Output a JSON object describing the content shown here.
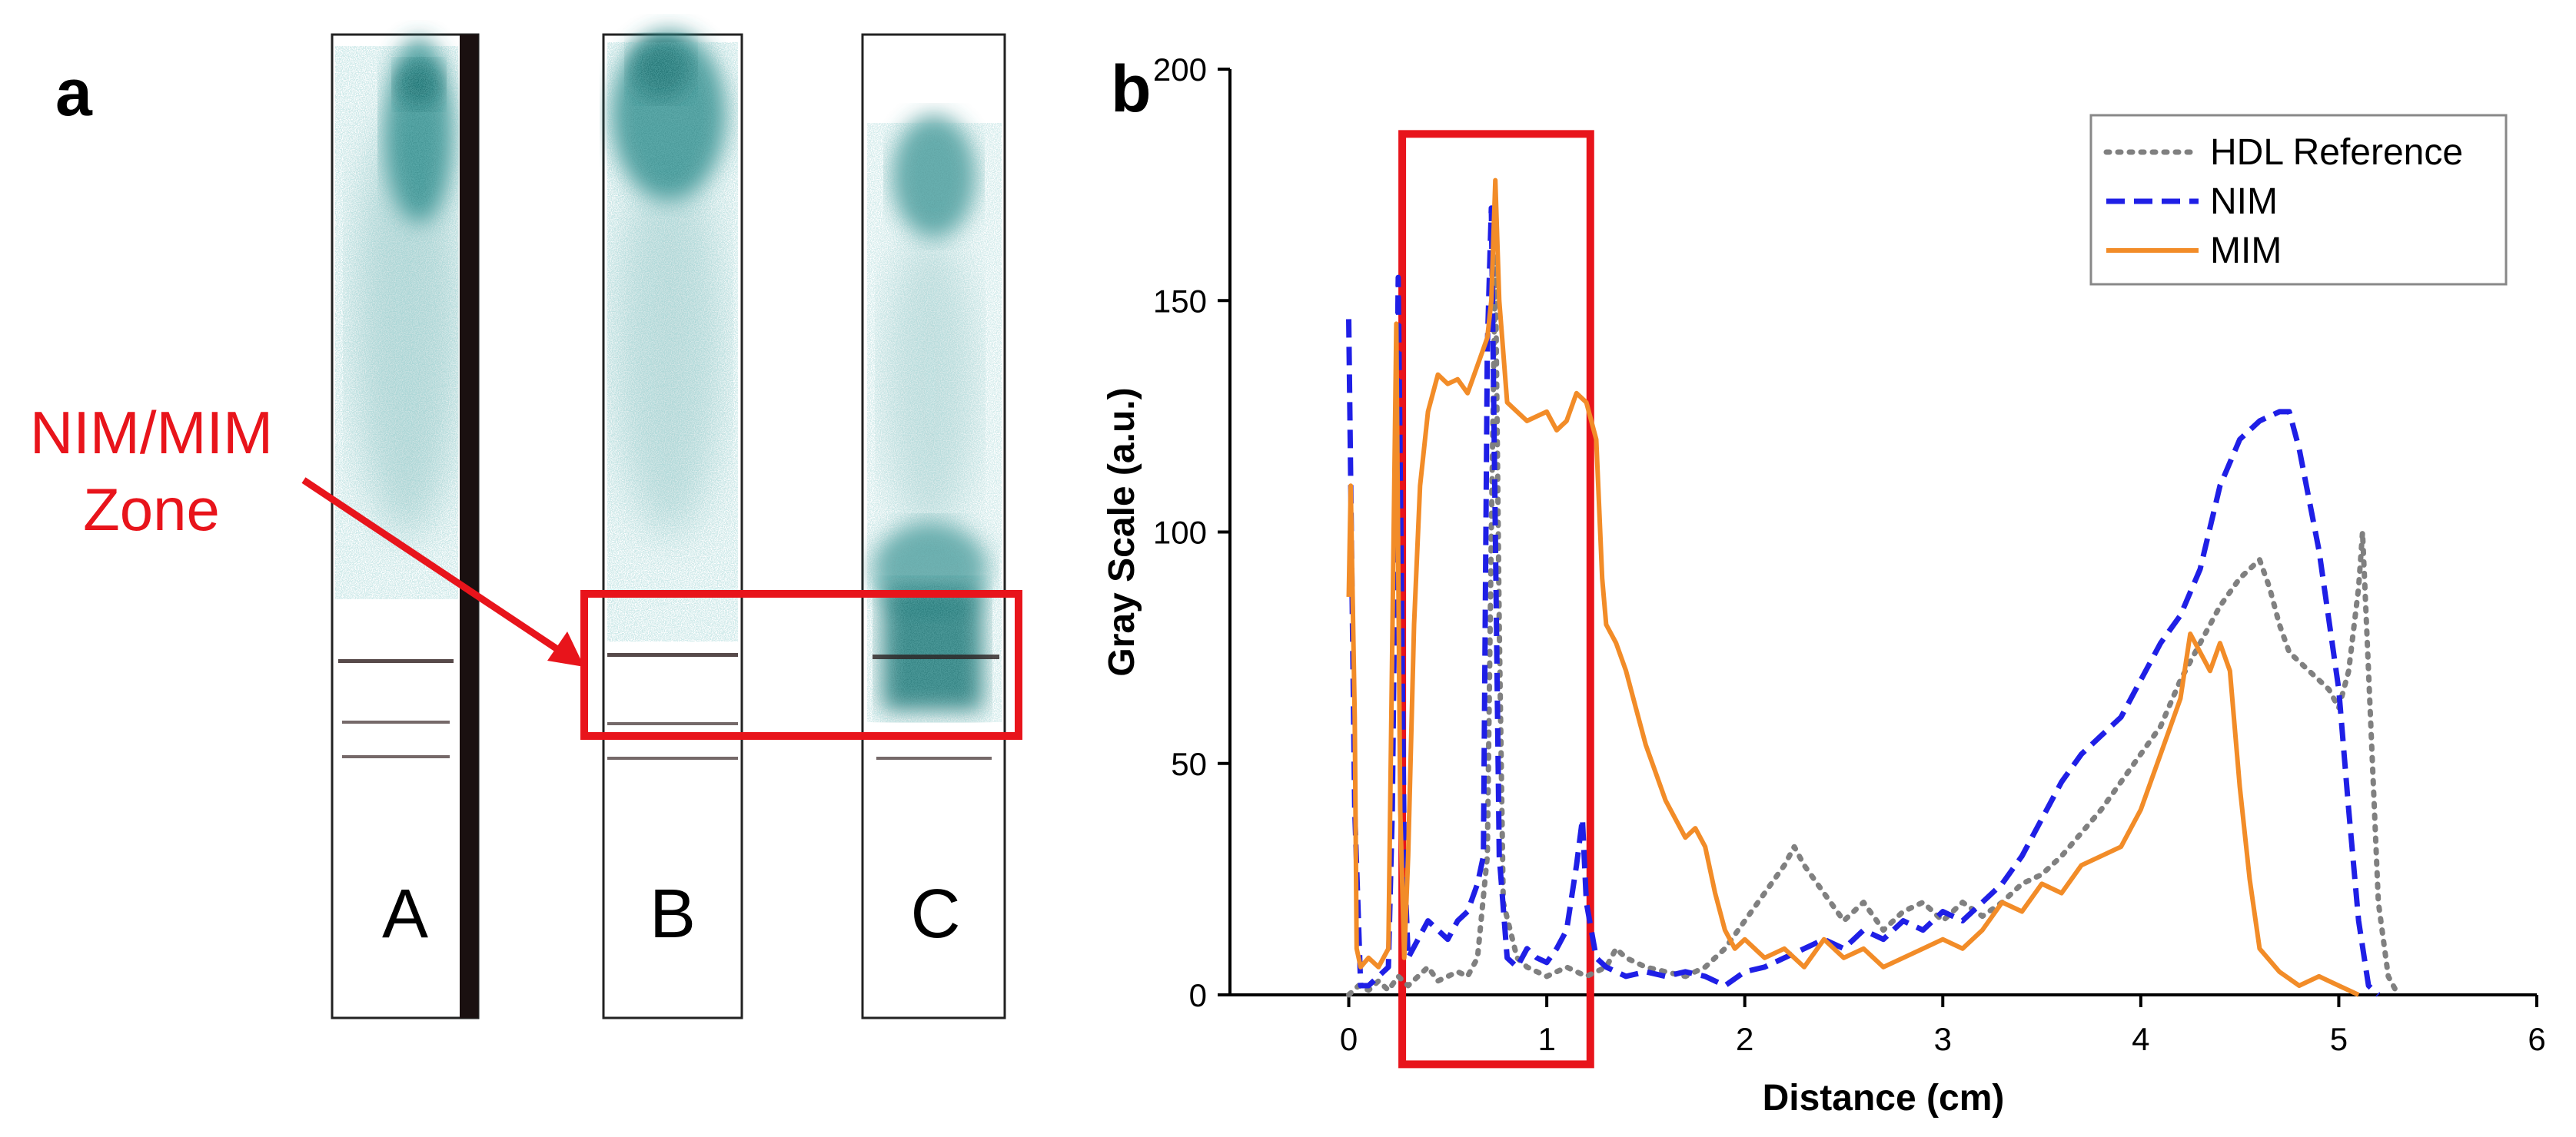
{
  "panel_a": {
    "label": "a",
    "zone_label_line1": "NIM/MIM",
    "zone_label_line2": "Zone",
    "strip_labels": [
      "A",
      "B",
      "C"
    ],
    "colors": {
      "stain": "#2f8a8a",
      "highlight": "#e8141b",
      "band": "#3a2a2a"
    }
  },
  "chart_data": {
    "type": "line",
    "panel_label": "b",
    "title": "",
    "xlabel": "Distance (cm)",
    "ylabel": "Gray Scale (a.u.)",
    "xlim": [
      -0.6,
      6
    ],
    "ylim": [
      0,
      200
    ],
    "xticks": [
      0,
      1,
      2,
      3,
      4,
      5,
      6
    ],
    "yticks": [
      0,
      50,
      100,
      150,
      200
    ],
    "legend_position": "top-right",
    "highlight_region": {
      "x": [
        0.27,
        1.22
      ],
      "y": [
        -15,
        186
      ],
      "color": "#e8141b"
    },
    "series": [
      {
        "name": "HDL Reference",
        "style": "dotted",
        "color": "#808080",
        "points": [
          [
            0,
            0
          ],
          [
            0.05,
            2
          ],
          [
            0.1,
            1
          ],
          [
            0.15,
            3
          ],
          [
            0.2,
            1
          ],
          [
            0.25,
            4
          ],
          [
            0.3,
            2
          ],
          [
            0.35,
            4
          ],
          [
            0.4,
            6
          ],
          [
            0.45,
            3
          ],
          [
            0.5,
            4
          ],
          [
            0.55,
            5
          ],
          [
            0.6,
            4
          ],
          [
            0.65,
            8
          ],
          [
            0.7,
            30
          ],
          [
            0.72,
            100
          ],
          [
            0.74,
            160
          ],
          [
            0.76,
            80
          ],
          [
            0.78,
            20
          ],
          [
            0.85,
            8
          ],
          [
            0.9,
            6
          ],
          [
            1.0,
            4
          ],
          [
            1.1,
            6
          ],
          [
            1.2,
            4
          ],
          [
            1.3,
            6
          ],
          [
            1.35,
            10
          ],
          [
            1.4,
            8
          ],
          [
            1.5,
            6
          ],
          [
            1.6,
            5
          ],
          [
            1.7,
            4
          ],
          [
            1.8,
            6
          ],
          [
            1.9,
            10
          ],
          [
            2.0,
            16
          ],
          [
            2.1,
            22
          ],
          [
            2.2,
            28
          ],
          [
            2.25,
            32
          ],
          [
            2.3,
            28
          ],
          [
            2.4,
            22
          ],
          [
            2.5,
            16
          ],
          [
            2.6,
            20
          ],
          [
            2.7,
            14
          ],
          [
            2.8,
            18
          ],
          [
            2.9,
            20
          ],
          [
            3.0,
            16
          ],
          [
            3.1,
            20
          ],
          [
            3.2,
            17
          ],
          [
            3.3,
            20
          ],
          [
            3.4,
            24
          ],
          [
            3.5,
            26
          ],
          [
            3.6,
            30
          ],
          [
            3.7,
            35
          ],
          [
            3.8,
            40
          ],
          [
            3.9,
            46
          ],
          [
            4.0,
            52
          ],
          [
            4.1,
            58
          ],
          [
            4.2,
            68
          ],
          [
            4.3,
            76
          ],
          [
            4.4,
            84
          ],
          [
            4.5,
            90
          ],
          [
            4.55,
            92
          ],
          [
            4.6,
            94
          ],
          [
            4.65,
            88
          ],
          [
            4.7,
            80
          ],
          [
            4.75,
            74
          ],
          [
            4.8,
            72
          ],
          [
            4.85,
            70
          ],
          [
            4.9,
            68
          ],
          [
            4.95,
            66
          ],
          [
            5.0,
            62
          ],
          [
            5.05,
            70
          ],
          [
            5.1,
            88
          ],
          [
            5.12,
            100
          ],
          [
            5.15,
            70
          ],
          [
            5.2,
            20
          ],
          [
            5.25,
            4
          ],
          [
            5.3,
            0
          ]
        ]
      },
      {
        "name": "NIM",
        "style": "dashed",
        "color": "#1f1fe6",
        "points": [
          [
            0,
            146
          ],
          [
            0.03,
            40
          ],
          [
            0.06,
            2
          ],
          [
            0.1,
            2
          ],
          [
            0.15,
            4
          ],
          [
            0.2,
            6
          ],
          [
            0.22,
            40
          ],
          [
            0.25,
            155
          ],
          [
            0.28,
            30
          ],
          [
            0.3,
            8
          ],
          [
            0.35,
            12
          ],
          [
            0.4,
            16
          ],
          [
            0.45,
            14
          ],
          [
            0.5,
            12
          ],
          [
            0.55,
            16
          ],
          [
            0.6,
            18
          ],
          [
            0.65,
            24
          ],
          [
            0.68,
            30
          ],
          [
            0.7,
            140
          ],
          [
            0.72,
            170
          ],
          [
            0.74,
            100
          ],
          [
            0.76,
            30
          ],
          [
            0.8,
            8
          ],
          [
            0.85,
            6
          ],
          [
            0.9,
            10
          ],
          [
            0.95,
            8
          ],
          [
            1.0,
            7
          ],
          [
            1.05,
            10
          ],
          [
            1.1,
            14
          ],
          [
            1.15,
            28
          ],
          [
            1.18,
            38
          ],
          [
            1.2,
            20
          ],
          [
            1.25,
            8
          ],
          [
            1.3,
            6
          ],
          [
            1.4,
            4
          ],
          [
            1.5,
            5
          ],
          [
            1.6,
            4
          ],
          [
            1.7,
            5
          ],
          [
            1.8,
            4
          ],
          [
            1.9,
            2
          ],
          [
            2.0,
            5
          ],
          [
            2.1,
            6
          ],
          [
            2.2,
            8
          ],
          [
            2.3,
            10
          ],
          [
            2.4,
            12
          ],
          [
            2.5,
            10
          ],
          [
            2.6,
            14
          ],
          [
            2.7,
            12
          ],
          [
            2.8,
            16
          ],
          [
            2.9,
            14
          ],
          [
            3.0,
            18
          ],
          [
            3.1,
            16
          ],
          [
            3.2,
            20
          ],
          [
            3.3,
            24
          ],
          [
            3.4,
            30
          ],
          [
            3.5,
            38
          ],
          [
            3.6,
            46
          ],
          [
            3.7,
            52
          ],
          [
            3.8,
            56
          ],
          [
            3.9,
            60
          ],
          [
            4.0,
            68
          ],
          [
            4.1,
            76
          ],
          [
            4.2,
            82
          ],
          [
            4.3,
            92
          ],
          [
            4.4,
            110
          ],
          [
            4.5,
            120
          ],
          [
            4.6,
            124
          ],
          [
            4.7,
            126
          ],
          [
            4.75,
            126
          ],
          [
            4.8,
            118
          ],
          [
            4.9,
            96
          ],
          [
            5.0,
            66
          ],
          [
            5.05,
            40
          ],
          [
            5.1,
            16
          ],
          [
            5.15,
            2
          ],
          [
            5.2,
            0
          ]
        ]
      },
      {
        "name": "MIM",
        "style": "solid",
        "color": "#f28c28",
        "points": [
          [
            0,
            86
          ],
          [
            0.01,
            110
          ],
          [
            0.03,
            60
          ],
          [
            0.04,
            10
          ],
          [
            0.06,
            6
          ],
          [
            0.1,
            8
          ],
          [
            0.15,
            6
          ],
          [
            0.2,
            10
          ],
          [
            0.24,
            145
          ],
          [
            0.26,
            40
          ],
          [
            0.28,
            8
          ],
          [
            0.3,
            30
          ],
          [
            0.33,
            80
          ],
          [
            0.36,
            110
          ],
          [
            0.4,
            126
          ],
          [
            0.45,
            134
          ],
          [
            0.5,
            132
          ],
          [
            0.55,
            133
          ],
          [
            0.6,
            130
          ],
          [
            0.65,
            136
          ],
          [
            0.7,
            142
          ],
          [
            0.72,
            150
          ],
          [
            0.74,
            176
          ],
          [
            0.76,
            150
          ],
          [
            0.8,
            128
          ],
          [
            0.85,
            126
          ],
          [
            0.9,
            124
          ],
          [
            0.95,
            125
          ],
          [
            1.0,
            126
          ],
          [
            1.05,
            122
          ],
          [
            1.1,
            124
          ],
          [
            1.15,
            130
          ],
          [
            1.2,
            128
          ],
          [
            1.25,
            120
          ],
          [
            1.28,
            90
          ],
          [
            1.3,
            80
          ],
          [
            1.35,
            76
          ],
          [
            1.4,
            70
          ],
          [
            1.45,
            62
          ],
          [
            1.5,
            54
          ],
          [
            1.55,
            48
          ],
          [
            1.6,
            42
          ],
          [
            1.65,
            38
          ],
          [
            1.7,
            34
          ],
          [
            1.75,
            36
          ],
          [
            1.8,
            32
          ],
          [
            1.85,
            22
          ],
          [
            1.9,
            14
          ],
          [
            1.95,
            10
          ],
          [
            2.0,
            12
          ],
          [
            2.1,
            8
          ],
          [
            2.2,
            10
          ],
          [
            2.3,
            6
          ],
          [
            2.4,
            12
          ],
          [
            2.5,
            8
          ],
          [
            2.6,
            10
          ],
          [
            2.7,
            6
          ],
          [
            2.8,
            8
          ],
          [
            2.9,
            10
          ],
          [
            3.0,
            12
          ],
          [
            3.1,
            10
          ],
          [
            3.2,
            14
          ],
          [
            3.3,
            20
          ],
          [
            3.4,
            18
          ],
          [
            3.5,
            24
          ],
          [
            3.6,
            22
          ],
          [
            3.7,
            28
          ],
          [
            3.8,
            30
          ],
          [
            3.9,
            32
          ],
          [
            4.0,
            40
          ],
          [
            4.1,
            52
          ],
          [
            4.2,
            64
          ],
          [
            4.25,
            78
          ],
          [
            4.3,
            74
          ],
          [
            4.35,
            70
          ],
          [
            4.4,
            76
          ],
          [
            4.45,
            70
          ],
          [
            4.5,
            45
          ],
          [
            4.55,
            25
          ],
          [
            4.6,
            10
          ],
          [
            4.7,
            5
          ],
          [
            4.8,
            2
          ],
          [
            4.9,
            4
          ],
          [
            5.0,
            2
          ],
          [
            5.1,
            0
          ]
        ]
      }
    ]
  }
}
